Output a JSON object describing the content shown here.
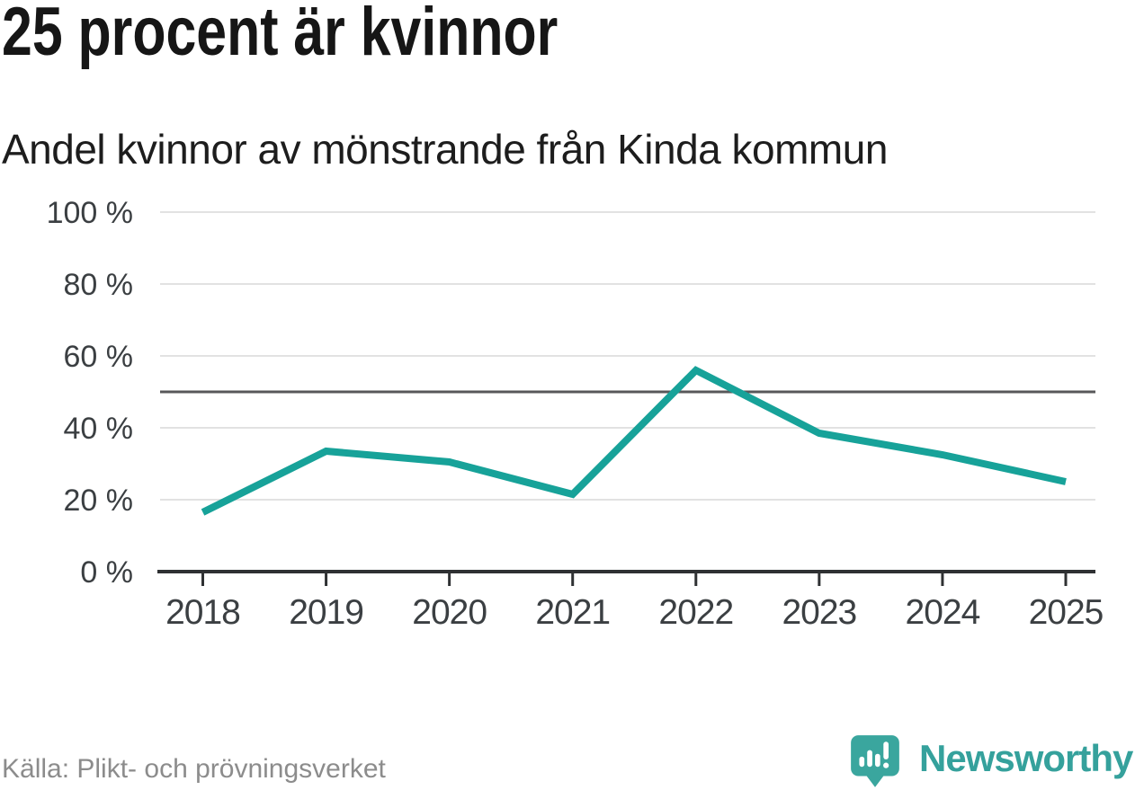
{
  "header": {
    "title": "25 procent är kvinnor",
    "subtitle": "Andel kvinnor av mönstrande från Kinda kommun"
  },
  "chart_data": {
    "type": "line",
    "categories": [
      "2018",
      "2019",
      "2020",
      "2021",
      "2022",
      "2023",
      "2024",
      "2025"
    ],
    "values": [
      16.5,
      33.5,
      30.5,
      21.5,
      56,
      38.5,
      32.5,
      25
    ],
    "title": "25 procent är kvinnor",
    "subtitle": "Andel kvinnor av mönstrande från Kinda kommun",
    "xlabel": "",
    "ylabel": "",
    "ylim": [
      0,
      100
    ],
    "yticks": [
      0,
      20,
      40,
      60,
      80,
      100
    ],
    "ytick_suffix": " %",
    "reference_line": 50,
    "grid": true,
    "legend": false
  },
  "footer": {
    "source": "Källa: Plikt- och prövningsverket",
    "brand": "Newsworthy"
  },
  "colors": {
    "line": "#17a299",
    "grid": "#e2e2e2",
    "reference": "#58585a",
    "axis": "#2f3133",
    "tick_label": "#3b3f42",
    "title": "#161616",
    "subtitle": "#1d1d1d",
    "source": "#8c8c8c",
    "brand_text": "#35a19c",
    "brand_icon": "#3aa69e",
    "brand_icon_glyph": "#ffffff"
  }
}
